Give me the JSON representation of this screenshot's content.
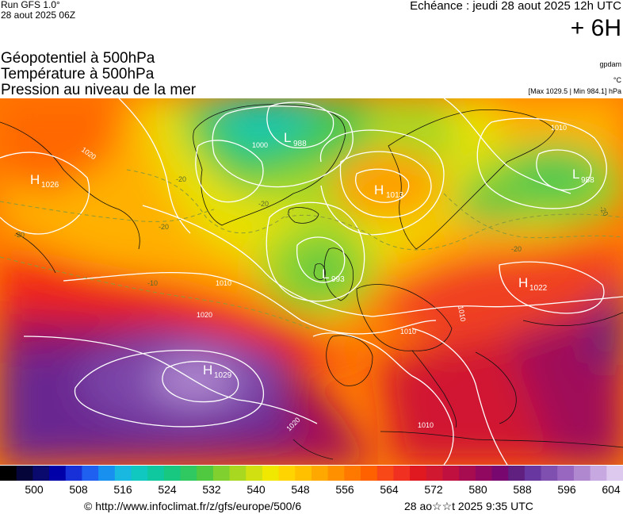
{
  "header": {
    "run_label": "Run GFS 1.0°",
    "run_date": "28 aout 2025 06Z",
    "echeance": "Echéance : jeudi 28 aout 2025 12h UTC",
    "offset": "+ 6H"
  },
  "parameters": [
    "Géopotentiel à 500hPa",
    "Température à 500hPa",
    "Pression au niveau de la mer"
  ],
  "units": {
    "geopotential": "gpdam",
    "temperature": "°C",
    "pressure": "[Max 1029.5 | Min 984.1] hPa"
  },
  "pressure_centers": [
    {
      "type": "H",
      "value": "1026"
    },
    {
      "type": "L",
      "value": "988"
    },
    {
      "type": "H",
      "value": "1013"
    },
    {
      "type": "L",
      "value": "988"
    },
    {
      "type": "L",
      "value": "993"
    },
    {
      "type": "H",
      "value": "1022"
    },
    {
      "type": "H",
      "value": "1029"
    }
  ],
  "isobar_labels": [
    "1020",
    "1000",
    "1010",
    "1020",
    "1010",
    "1010",
    "1010",
    "1020",
    "1010"
  ],
  "temperature_labels": [
    "-20",
    "-20",
    "-20",
    "-20",
    "-20",
    "-10",
    "-20"
  ],
  "scale": {
    "ticks": [
      "500",
      "508",
      "516",
      "524",
      "532",
      "540",
      "548",
      "556",
      "564",
      "572",
      "580",
      "588",
      "596",
      "604"
    ],
    "colors": [
      "#000000",
      "#05053a",
      "#0a0a6e",
      "#0000a8",
      "#1830d8",
      "#1f60f0",
      "#1890f0",
      "#18b8e0",
      "#10c8c0",
      "#10c8a0",
      "#18c880",
      "#30c860",
      "#50c840",
      "#80d030",
      "#a8d820",
      "#d0e010",
      "#f0e800",
      "#ffd400",
      "#ffc000",
      "#ffa800",
      "#ff9000",
      "#ff7800",
      "#ff6000",
      "#f84818",
      "#f03020",
      "#e01820",
      "#d01830",
      "#c01040",
      "#a80c50",
      "#900860",
      "#780870",
      "#602080",
      "#6838a0",
      "#8050b0",
      "#9868c0",
      "#b088d0",
      "#c8a8e0",
      "#ddc8ee"
    ]
  },
  "footer": {
    "url": "© http://www.infoclimat.fr/z/gfs/europe/500/6",
    "date": "28 ao☆☆t 2025  9:35 UTC"
  }
}
